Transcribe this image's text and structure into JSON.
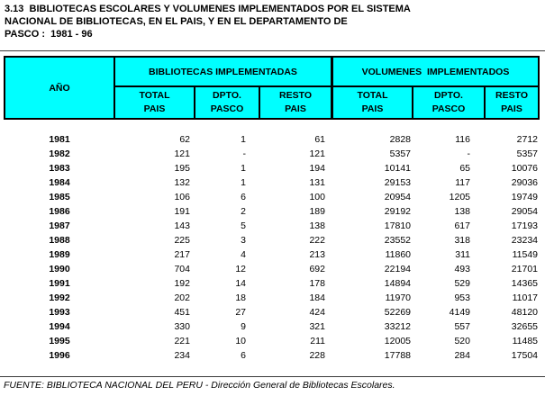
{
  "page": {
    "title_lines": [
      "3.13  BIBLIOTECAS ESCOLARES Y VOLUMENES IMPLEMENTADOS POR EL SISTEMA",
      "NACIONAL DE BIBLIOTECAS, EN EL PAIS, Y EN EL DEPARTAMENTO DE",
      "PASCO :  1981 - 96"
    ],
    "footer_source": "FUENTE: BIBLIOTECA NACIONAL DEL PERU - Dirección General de Bibliotecas Escolares."
  },
  "colors": {
    "header_bg": "#00ffff",
    "border": "#000000",
    "text": "#000000",
    "background": "#ffffff"
  },
  "table": {
    "year_header": "AÑO",
    "group1_label": "BIBLIOTECAS IMPLEMENTADAS",
    "group2_label": "VOLUMENES  IMPLEMENTADOS",
    "subheaders": [
      {
        "l1": "TOTAL",
        "l2": "PAIS"
      },
      {
        "l1": "DPTO.",
        "l2": "PASCO"
      },
      {
        "l1": "RESTO",
        "l2": "PAIS"
      },
      {
        "l1": "TOTAL",
        "l2": "PAIS"
      },
      {
        "l1": "DPTO.",
        "l2": "PASCO"
      },
      {
        "l1": "RESTO",
        "l2": "PAIS"
      }
    ]
  },
  "rows": [
    {
      "year": "1981",
      "values": [
        "62",
        "1",
        "61",
        "2828",
        "116",
        "2712"
      ]
    },
    {
      "year": "1982",
      "values": [
        "121",
        "-",
        "121",
        "5357",
        "-",
        "5357"
      ]
    },
    {
      "year": "1983",
      "values": [
        "195",
        "1",
        "194",
        "10141",
        "65",
        "10076"
      ]
    },
    {
      "year": "1984",
      "values": [
        "132",
        "1",
        "131",
        "29153",
        "117",
        "29036"
      ]
    },
    {
      "year": "1985",
      "values": [
        "106",
        "6",
        "100",
        "20954",
        "1205",
        "19749"
      ]
    },
    {
      "year": "1986",
      "values": [
        "191",
        "2",
        "189",
        "29192",
        "138",
        "29054"
      ]
    },
    {
      "year": "1987",
      "values": [
        "143",
        "5",
        "138",
        "17810",
        "617",
        "17193"
      ]
    },
    {
      "year": "1988",
      "values": [
        "225",
        "3",
        "222",
        "23552",
        "318",
        "23234"
      ]
    },
    {
      "year": "1989",
      "values": [
        "217",
        "4",
        "213",
        "11860",
        "311",
        "11549"
      ]
    },
    {
      "year": "1990",
      "values": [
        "704",
        "12",
        "692",
        "22194",
        "493",
        "21701"
      ]
    },
    {
      "year": "1991",
      "values": [
        "192",
        "14",
        "178",
        "14894",
        "529",
        "14365"
      ]
    },
    {
      "year": "1992",
      "values": [
        "202",
        "18",
        "184",
        "11970",
        "953",
        "11017"
      ]
    },
    {
      "year": "1993",
      "values": [
        "451",
        "27",
        "424",
        "52269",
        "4149",
        "48120"
      ]
    },
    {
      "year": "1994",
      "values": [
        "330",
        "9",
        "321",
        "33212",
        "557",
        "32655"
      ]
    },
    {
      "year": "1995",
      "values": [
        "221",
        "10",
        "211",
        "12005",
        "520",
        "11485"
      ]
    },
    {
      "year": "1996",
      "values": [
        "234",
        "6",
        "228",
        "17788",
        "284",
        "17504"
      ]
    }
  ]
}
